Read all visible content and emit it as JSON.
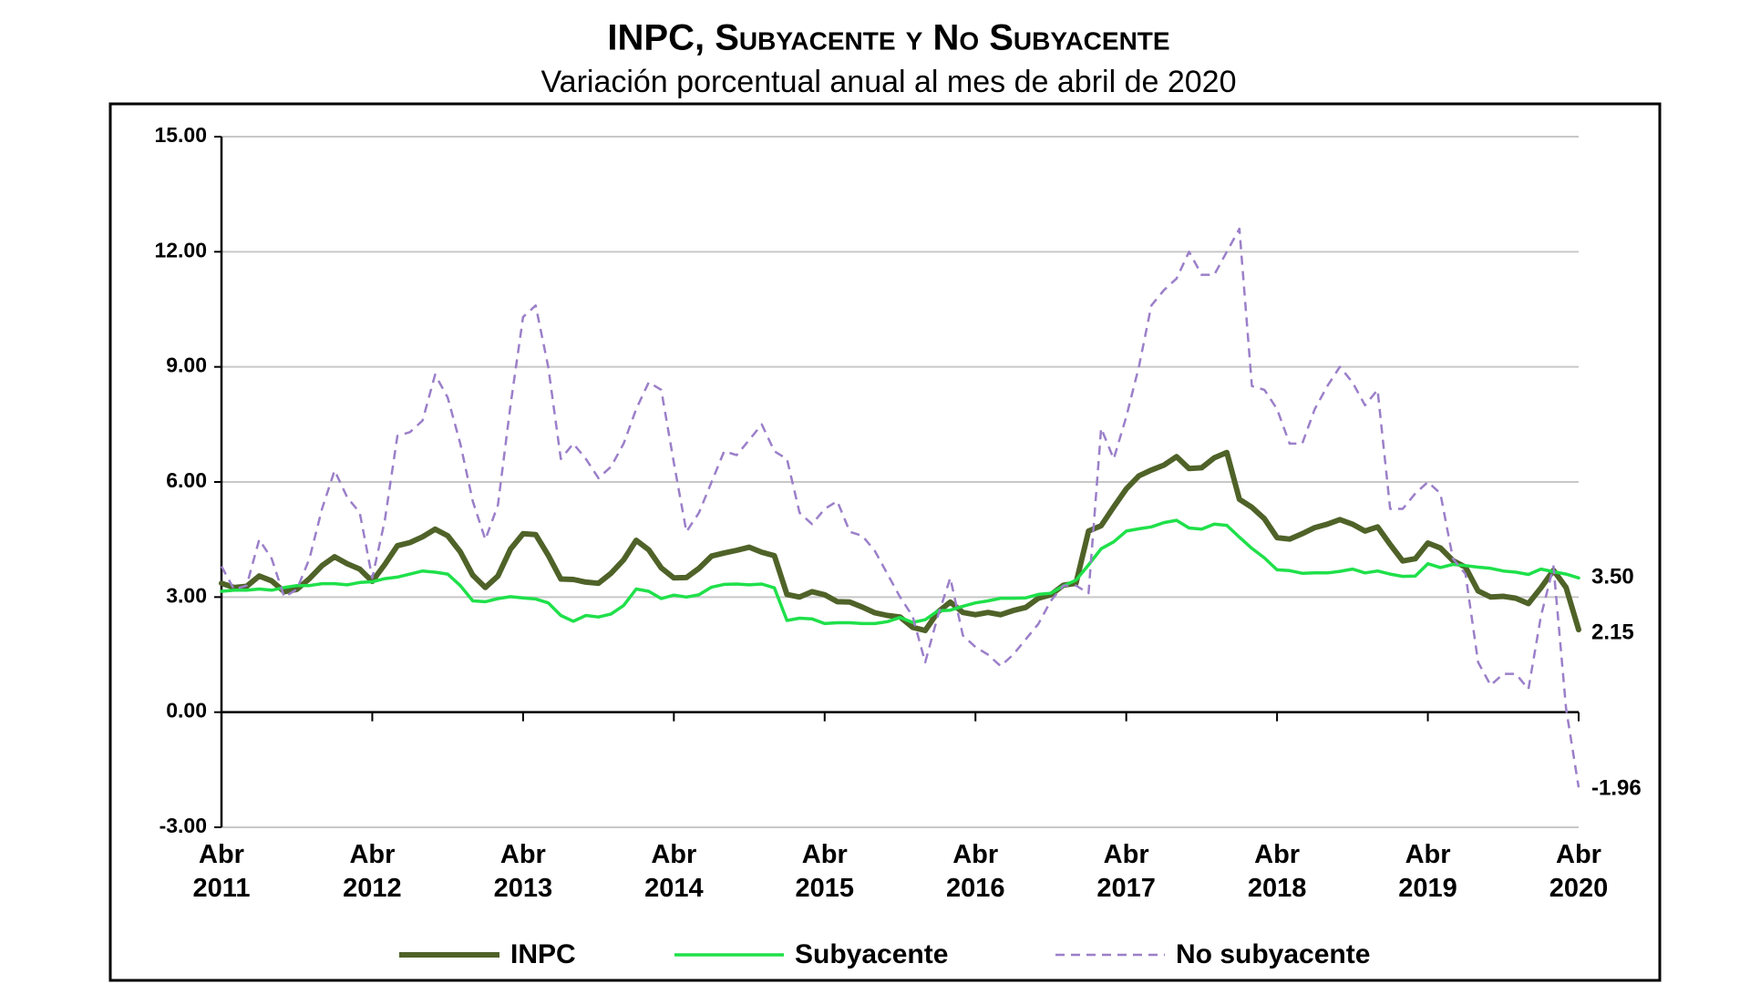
{
  "chart_data": {
    "type": "line",
    "title": "INPC, Subyacente y No Subyacente",
    "subtitle": "Variación porcentual anual al mes de abril de 2020",
    "categories": [
      "Abr 2011",
      null,
      null,
      null,
      null,
      null,
      null,
      null,
      null,
      null,
      null,
      null,
      "Abr 2012",
      null,
      null,
      null,
      null,
      null,
      null,
      null,
      null,
      null,
      null,
      null,
      "Abr 2013",
      null,
      null,
      null,
      null,
      null,
      null,
      null,
      null,
      null,
      null,
      null,
      "Abr 2014",
      null,
      null,
      null,
      null,
      null,
      null,
      null,
      null,
      null,
      null,
      null,
      "Abr 2015",
      null,
      null,
      null,
      null,
      null,
      null,
      null,
      null,
      null,
      null,
      null,
      "Abr 2016",
      null,
      null,
      null,
      null,
      null,
      null,
      null,
      null,
      null,
      null,
      null,
      "Abr 2017",
      null,
      null,
      null,
      null,
      null,
      null,
      null,
      null,
      null,
      null,
      null,
      "Abr 2018",
      null,
      null,
      null,
      null,
      null,
      null,
      null,
      null,
      null,
      null,
      null,
      "Abr 2019",
      null,
      null,
      null,
      null,
      null,
      null,
      null,
      null,
      null,
      null,
      null,
      "Abr 2020"
    ],
    "ylim": [
      -3,
      15
    ],
    "yticks": [
      {
        "value": -3,
        "label": "-3.00"
      },
      {
        "value": 0,
        "label": "0.00"
      },
      {
        "value": 3,
        "label": "3.00"
      },
      {
        "value": 6,
        "label": "6.00"
      },
      {
        "value": 9,
        "label": "9.00"
      },
      {
        "value": 12,
        "label": "12.00"
      },
      {
        "value": 15,
        "label": "15.00"
      }
    ],
    "grid": true,
    "legend": "bottom",
    "series": [
      {
        "name": "INPC",
        "color": "#4f6228",
        "width": 6,
        "dashed": false,
        "values": [
          3.36,
          3.25,
          3.28,
          3.55,
          3.42,
          3.14,
          3.2,
          3.48,
          3.82,
          4.05,
          3.87,
          3.73,
          3.41,
          3.85,
          4.34,
          4.42,
          4.57,
          4.77,
          4.6,
          4.18,
          3.57,
          3.25,
          3.55,
          4.25,
          4.65,
          4.63,
          4.09,
          3.47,
          3.46,
          3.39,
          3.36,
          3.62,
          3.97,
          4.48,
          4.23,
          3.76,
          3.5,
          3.51,
          3.75,
          4.07,
          4.15,
          4.22,
          4.3,
          4.17,
          4.08,
          3.07,
          3.0,
          3.14,
          3.06,
          2.88,
          2.87,
          2.74,
          2.59,
          2.52,
          2.48,
          2.21,
          2.13,
          2.61,
          2.87,
          2.6,
          2.54,
          2.6,
          2.54,
          2.65,
          2.73,
          2.97,
          3.06,
          3.31,
          3.36,
          4.72,
          4.86,
          5.35,
          5.82,
          6.16,
          6.31,
          6.44,
          6.66,
          6.35,
          6.37,
          6.63,
          6.77,
          5.55,
          5.34,
          5.04,
          4.55,
          4.51,
          4.65,
          4.81,
          4.9,
          5.02,
          4.9,
          4.72,
          4.83,
          4.37,
          3.94,
          4.0,
          4.41,
          4.28,
          3.95,
          3.78,
          3.16,
          3.0,
          3.02,
          2.97,
          2.83,
          3.24,
          3.7,
          3.25,
          2.15
        ],
        "value_labels": [
          null,
          null,
          null,
          null,
          null,
          null,
          null,
          null,
          null,
          null,
          null,
          null,
          null,
          null,
          null,
          null,
          null,
          null,
          null,
          null,
          null,
          null,
          null,
          null,
          null,
          null,
          null,
          null,
          null,
          null,
          null,
          null,
          null,
          null,
          null,
          null,
          null,
          null,
          null,
          null,
          null,
          null,
          null,
          null,
          null,
          null,
          null,
          null,
          null,
          null,
          null,
          null,
          null,
          null,
          null,
          null,
          null,
          null,
          null,
          null,
          null,
          null,
          null,
          null,
          null,
          null,
          null,
          null,
          null,
          null,
          null,
          null,
          null,
          null,
          null,
          null,
          null,
          null,
          null,
          null,
          null,
          null,
          null,
          null,
          null,
          null,
          null,
          null,
          null,
          null,
          null,
          null,
          null,
          null,
          null,
          null,
          null,
          null,
          null,
          null,
          null,
          null,
          null,
          null,
          null,
          null,
          null,
          null,
          "2.15"
        ]
      },
      {
        "name": "Subyacente",
        "color": "#1fe04a",
        "width": 3.5,
        "dashed": false,
        "values": [
          3.15,
          3.18,
          3.18,
          3.21,
          3.18,
          3.25,
          3.3,
          3.3,
          3.35,
          3.35,
          3.32,
          3.38,
          3.4,
          3.48,
          3.52,
          3.6,
          3.68,
          3.65,
          3.6,
          3.3,
          2.9,
          2.88,
          2.96,
          3.01,
          2.98,
          2.95,
          2.85,
          2.52,
          2.37,
          2.52,
          2.48,
          2.56,
          2.78,
          3.21,
          3.15,
          2.96,
          3.05,
          3.0,
          3.06,
          3.26,
          3.33,
          3.34,
          3.32,
          3.34,
          3.24,
          2.39,
          2.45,
          2.43,
          2.31,
          2.33,
          2.33,
          2.31,
          2.31,
          2.36,
          2.47,
          2.34,
          2.41,
          2.64,
          2.66,
          2.76,
          2.85,
          2.9,
          2.97,
          2.97,
          2.98,
          3.07,
          3.1,
          3.29,
          3.44,
          3.84,
          4.26,
          4.44,
          4.72,
          4.78,
          4.83,
          4.94,
          5.0,
          4.8,
          4.77,
          4.9,
          4.87,
          4.56,
          4.27,
          4.02,
          3.71,
          3.69,
          3.62,
          3.63,
          3.63,
          3.67,
          3.73,
          3.63,
          3.68,
          3.6,
          3.54,
          3.55,
          3.87,
          3.77,
          3.85,
          3.82,
          3.78,
          3.75,
          3.68,
          3.65,
          3.59,
          3.73,
          3.66,
          3.6,
          3.5
        ],
        "value_labels": [
          null,
          null,
          null,
          null,
          null,
          null,
          null,
          null,
          null,
          null,
          null,
          null,
          null,
          null,
          null,
          null,
          null,
          null,
          null,
          null,
          null,
          null,
          null,
          null,
          null,
          null,
          null,
          null,
          null,
          null,
          null,
          null,
          null,
          null,
          null,
          null,
          null,
          null,
          null,
          null,
          null,
          null,
          null,
          null,
          null,
          null,
          null,
          null,
          null,
          null,
          null,
          null,
          null,
          null,
          null,
          null,
          null,
          null,
          null,
          null,
          null,
          null,
          null,
          null,
          null,
          null,
          null,
          null,
          null,
          null,
          null,
          null,
          null,
          null,
          null,
          null,
          null,
          null,
          null,
          null,
          null,
          null,
          null,
          null,
          null,
          null,
          null,
          null,
          null,
          null,
          null,
          null,
          null,
          null,
          null,
          null,
          null,
          null,
          null,
          null,
          null,
          null,
          null,
          null,
          null,
          null,
          null,
          null,
          "3.50"
        ]
      },
      {
        "name": "No subyacente",
        "color": "#9b7fc9",
        "width": 2.5,
        "dashed": true,
        "values": [
          3.8,
          3.2,
          3.3,
          4.5,
          4.0,
          3.0,
          3.2,
          4.0,
          5.3,
          6.3,
          5.6,
          5.2,
          3.5,
          5.0,
          7.2,
          7.3,
          7.6,
          8.8,
          8.2,
          7.0,
          5.5,
          4.5,
          5.4,
          8.0,
          10.3,
          10.6,
          9.0,
          6.6,
          7.0,
          6.6,
          6.1,
          6.4,
          7.0,
          7.9,
          8.6,
          8.4,
          6.5,
          4.7,
          5.2,
          6.0,
          6.8,
          6.7,
          7.1,
          7.5,
          6.8,
          6.6,
          5.2,
          4.9,
          5.3,
          5.5,
          4.7,
          4.6,
          4.2,
          3.6,
          3.0,
          2.5,
          1.3,
          2.5,
          3.5,
          2.0,
          1.7,
          1.5,
          1.2,
          1.5,
          1.9,
          2.3,
          2.9,
          3.3,
          3.3,
          3.1,
          7.4,
          6.6,
          7.7,
          9.0,
          10.6,
          11.0,
          11.3,
          12.0,
          11.4,
          11.4,
          12.0,
          12.6,
          8.5,
          8.4,
          7.9,
          7.0,
          7.0,
          7.9,
          8.5,
          9.0,
          8.6,
          8.0,
          8.4,
          5.3,
          5.3,
          5.7,
          6.0,
          5.7,
          4.0,
          3.6,
          1.3,
          0.7,
          1.0,
          1.0,
          0.6,
          2.5,
          3.8,
          0.1,
          -1.96
        ],
        "value_labels": [
          null,
          null,
          null,
          null,
          null,
          null,
          null,
          null,
          null,
          null,
          null,
          null,
          null,
          null,
          null,
          null,
          null,
          null,
          null,
          null,
          null,
          null,
          null,
          null,
          null,
          null,
          null,
          null,
          null,
          null,
          null,
          null,
          null,
          null,
          null,
          null,
          null,
          null,
          null,
          null,
          null,
          null,
          null,
          null,
          null,
          null,
          null,
          null,
          null,
          null,
          null,
          null,
          null,
          null,
          null,
          null,
          null,
          null,
          null,
          null,
          null,
          null,
          null,
          null,
          null,
          null,
          null,
          null,
          null,
          null,
          null,
          null,
          null,
          null,
          null,
          null,
          null,
          null,
          null,
          null,
          null,
          null,
          null,
          null,
          null,
          null,
          null,
          null,
          null,
          null,
          null,
          null,
          null,
          null,
          null,
          null,
          null,
          null,
          null,
          null,
          null,
          null,
          null,
          null,
          null,
          null,
          null,
          null,
          "-1.96"
        ]
      }
    ]
  }
}
